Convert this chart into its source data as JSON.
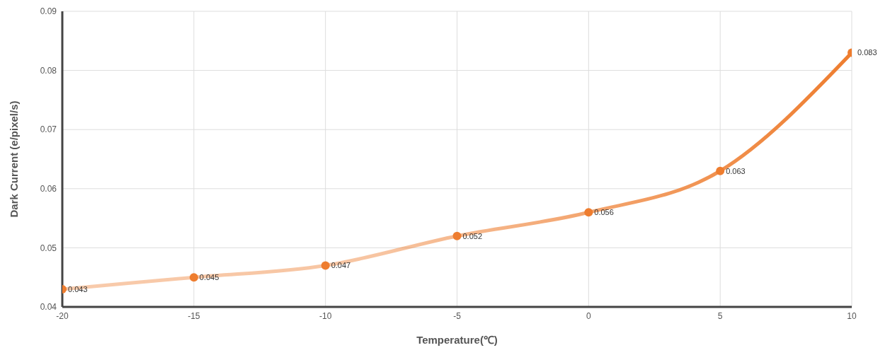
{
  "chart_data": {
    "type": "line",
    "xlabel": "Temperature(℃)",
    "ylabel": "Dark Current (e/pixel/s)",
    "x": [
      -20,
      -15,
      -10,
      -5,
      0,
      5,
      10
    ],
    "series": [
      {
        "color": "#ee7d2f",
        "values": [
          0.043,
          0.045,
          0.047,
          0.052,
          0.056,
          0.063,
          0.083
        ]
      }
    ],
    "xlim": [
      -20,
      10
    ],
    "xticks": [
      -20,
      -15,
      -10,
      -5,
      0,
      5,
      10
    ],
    "ylim": [
      0.04,
      0.09
    ],
    "yticks": [
      0.04,
      0.05,
      0.06,
      0.07,
      0.08,
      0.09
    ],
    "grid": true,
    "marker": "circle",
    "data_labels": true,
    "legend": false
  }
}
